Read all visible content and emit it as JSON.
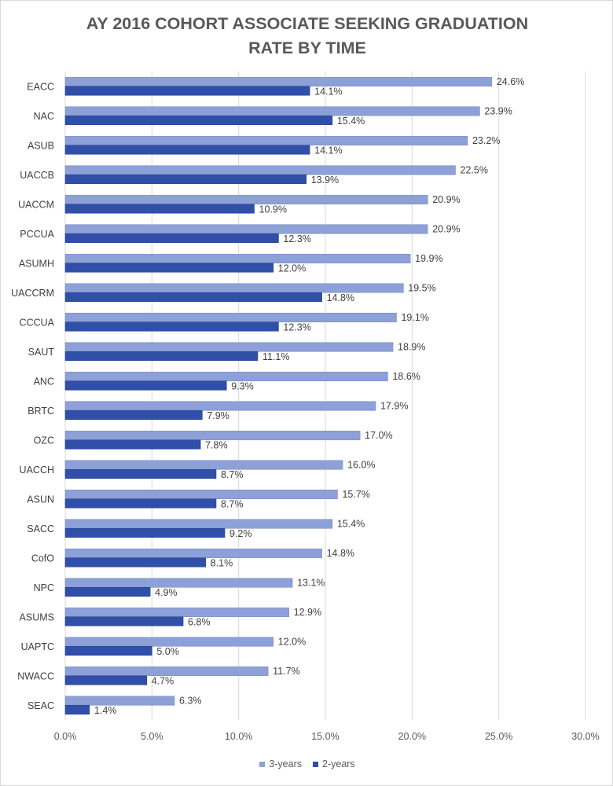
{
  "chart_data": {
    "type": "bar",
    "orientation": "horizontal",
    "title": "AY 2016 COHORT ASSOCIATE SEEKING GRADUATION RATE BY TIME",
    "title_lines": [
      "AY 2016 COHORT ASSOCIATE SEEKING GRADUATION",
      "RATE BY TIME"
    ],
    "categories": [
      "EACC",
      "NAC",
      "ASUB",
      "UACCB",
      "UACCM",
      "PCCUA",
      "ASUMH",
      "UACCRM",
      "CCCUA",
      "SAUT",
      "ANC",
      "BRTC",
      "OZC",
      "UACCH",
      "ASUN",
      "SACC",
      "CofO",
      "NPC",
      "ASUMS",
      "UAPTC",
      "NWACC",
      "SEAC"
    ],
    "series": [
      {
        "name": "3-years",
        "color": "#8ea0d8",
        "values": [
          24.6,
          23.9,
          23.2,
          22.5,
          20.9,
          20.9,
          19.9,
          19.5,
          19.1,
          18.9,
          18.6,
          17.9,
          17.0,
          16.0,
          15.7,
          15.4,
          14.8,
          13.1,
          12.9,
          12.0,
          11.7,
          6.3
        ],
        "labels": [
          "24.6%",
          "23.9%",
          "23.2%",
          "22.5%",
          "20.9%",
          "20.9%",
          "19.9%",
          "19.5%",
          "19.1%",
          "18.9%",
          "18.6%",
          "17.9%",
          "17.0%",
          "16.0%",
          "15.7%",
          "15.4%",
          "14.8%",
          "13.1%",
          "12.9%",
          "12.0%",
          "11.7%",
          "6.3%"
        ]
      },
      {
        "name": "2-years",
        "color": "#2f4fa8",
        "values": [
          14.1,
          15.4,
          14.1,
          13.9,
          10.9,
          12.3,
          12.0,
          14.8,
          12.3,
          11.1,
          9.3,
          7.9,
          7.8,
          8.7,
          8.7,
          9.2,
          8.1,
          4.9,
          6.8,
          5.0,
          4.7,
          1.4
        ],
        "labels": [
          "14.1%",
          "15.4%",
          "14.1%",
          "13.9%",
          "10.9%",
          "12.3%",
          "12.0%",
          "14.8%",
          "12.3%",
          "11.1%",
          "9.3%",
          "7.9%",
          "7.8%",
          "8.7%",
          "8.7%",
          "9.2%",
          "8.1%",
          "4.9%",
          "6.8%",
          "5.0%",
          "4.7%",
          "1.4%"
        ]
      }
    ],
    "xlim": [
      0,
      30
    ],
    "xticks": [
      "0.0%",
      "5.0%",
      "10.0%",
      "15.0%",
      "20.0%",
      "25.0%",
      "30.0%"
    ],
    "xlabel": "",
    "ylabel": "",
    "grid": "vertical",
    "legend_position": "bottom",
    "gridline_color": "#d9d9d9",
    "text_color": "#595959"
  }
}
